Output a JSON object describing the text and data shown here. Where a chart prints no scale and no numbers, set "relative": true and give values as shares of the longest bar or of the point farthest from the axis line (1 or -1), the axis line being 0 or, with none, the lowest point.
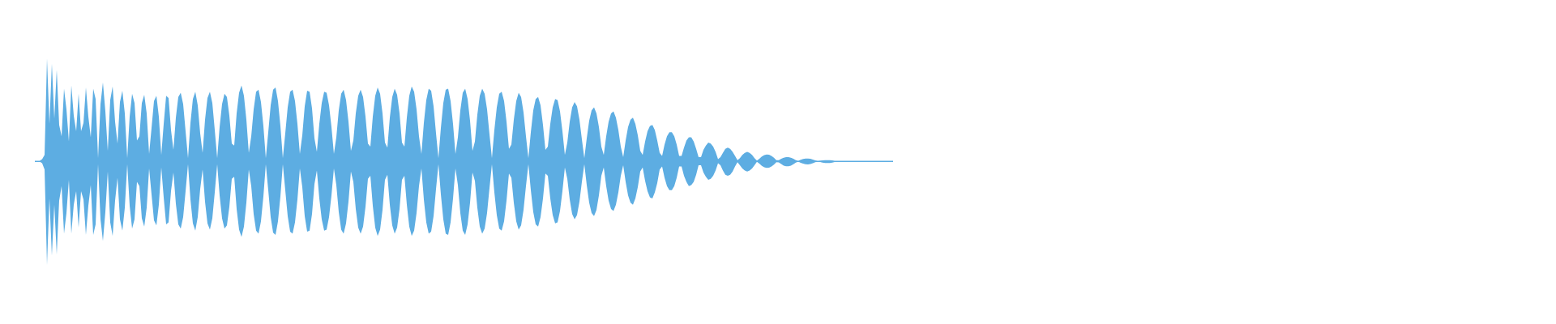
{
  "chart_data": {
    "type": "area",
    "relative": true,
    "tick_labels": false,
    "categories": [
      null,
      null,
      null,
      null,
      null,
      null,
      null,
      null,
      null,
      null,
      null,
      null,
      null,
      null,
      null,
      null,
      null,
      null,
      null,
      null,
      null,
      null,
      null,
      null,
      null,
      null,
      null,
      null,
      null,
      null,
      null,
      null,
      null,
      null,
      null,
      null,
      null,
      null,
      null,
      null,
      null,
      null,
      null,
      null,
      null,
      null,
      null,
      null,
      null,
      null,
      null,
      null,
      null,
      null,
      null,
      null,
      null,
      null,
      null,
      null,
      null,
      null,
      null,
      null,
      null,
      null,
      null,
      null,
      null,
      null,
      null,
      null,
      null,
      null,
      null,
      null,
      null,
      null,
      null,
      null,
      null,
      null,
      null,
      null,
      null,
      null,
      null,
      null,
      null,
      null,
      null,
      null,
      null,
      null,
      null,
      null,
      null,
      null,
      null,
      null,
      null,
      null,
      null,
      null,
      null,
      null,
      null,
      null,
      null,
      null,
      null,
      null,
      null,
      null,
      null,
      null,
      null,
      null,
      null,
      null,
      null,
      null,
      null,
      null,
      null,
      null,
      null,
      null,
      null,
      null,
      null,
      null,
      null,
      null,
      null,
      null,
      null,
      null,
      null,
      null,
      null,
      null,
      null,
      null,
      null,
      null,
      null,
      null,
      null,
      null,
      null,
      null,
      null,
      null,
      null,
      null,
      null,
      null,
      null,
      null,
      null,
      null,
      null,
      null,
      null,
      null,
      null,
      null,
      null,
      null,
      null,
      null,
      null,
      null,
      null,
      null,
      null,
      null,
      null,
      null,
      null,
      null,
      null,
      null,
      null,
      null,
      null,
      null,
      null,
      null,
      null,
      null,
      null,
      null,
      null,
      null,
      null,
      null,
      null,
      null,
      null,
      null,
      null,
      null,
      null,
      null,
      null,
      null,
      null,
      null,
      null,
      null,
      null,
      null,
      null,
      null,
      null,
      null,
      null,
      null,
      null,
      null,
      null,
      null,
      null,
      null,
      null,
      null,
      null,
      null,
      null,
      null,
      null,
      null,
      null,
      null,
      null,
      null,
      null,
      null,
      null,
      null,
      null,
      null,
      null,
      null,
      null,
      null,
      null,
      null,
      null,
      null,
      null,
      null,
      null,
      null,
      null,
      null,
      null,
      null,
      null,
      null,
      null,
      null,
      null,
      null,
      null,
      null,
      null,
      null,
      null,
      null,
      null,
      null,
      null,
      null,
      null,
      null,
      null,
      null,
      null,
      null,
      null,
      null,
      null,
      null,
      null,
      null,
      null,
      null,
      null,
      null,
      null,
      null,
      null,
      null,
      null,
      null,
      null,
      null,
      null,
      null,
      null,
      null,
      null,
      null,
      null,
      null,
      null,
      null,
      null,
      null,
      null,
      null,
      null,
      null,
      null,
      null,
      null,
      null,
      null,
      null,
      null,
      null,
      null,
      null,
      null,
      null,
      null,
      null,
      null,
      null,
      null,
      null,
      null,
      null,
      null,
      null,
      null,
      null,
      null,
      null,
      null,
      null,
      null,
      null,
      null,
      null,
      null,
      null,
      null,
      null,
      null,
      null
    ],
    "series": [
      {
        "color": "#5dade2",
        "values": [
          0.004,
          0.004,
          0.004,
          0.02,
          0.06,
          0.99,
          0.36,
          0.94,
          0.41,
          0.88,
          0.35,
          0.24,
          0.7,
          0.5,
          0.19,
          0.73,
          0.44,
          0.29,
          0.65,
          0.29,
          0.37,
          0.71,
          0.43,
          0.23,
          0.7,
          0.6,
          0.03,
          0.55,
          0.76,
          0.48,
          0.1,
          0.59,
          0.72,
          0.38,
          0.17,
          0.57,
          0.68,
          0.46,
          0.03,
          0.43,
          0.65,
          0.56,
          0.2,
          0.24,
          0.56,
          0.64,
          0.46,
          0.07,
          0.32,
          0.58,
          0.63,
          0.43,
          0.06,
          0.36,
          0.63,
          0.61,
          0.3,
          0.11,
          0.42,
          0.62,
          0.66,
          0.55,
          0.29,
          0.03,
          0.37,
          0.6,
          0.67,
          0.54,
          0.27,
          0.08,
          0.4,
          0.61,
          0.67,
          0.56,
          0.3,
          0.03,
          0.33,
          0.55,
          0.65,
          0.62,
          0.44,
          0.17,
          0.15,
          0.46,
          0.66,
          0.73,
          0.63,
          0.4,
          0.08,
          0.24,
          0.5,
          0.67,
          0.69,
          0.57,
          0.34,
          0.03,
          0.28,
          0.54,
          0.69,
          0.71,
          0.58,
          0.34,
          0.03,
          0.27,
          0.52,
          0.67,
          0.69,
          0.58,
          0.36,
          0.07,
          0.25,
          0.53,
          0.68,
          0.67,
          0.51,
          0.22,
          0.09,
          0.36,
          0.56,
          0.67,
          0.66,
          0.54,
          0.33,
          0.07,
          0.23,
          0.49,
          0.65,
          0.69,
          0.59,
          0.38,
          0.1,
          0.2,
          0.46,
          0.63,
          0.69,
          0.62,
          0.43,
          0.17,
          0.14,
          0.43,
          0.63,
          0.71,
          0.65,
          0.46,
          0.18,
          0.13,
          0.42,
          0.62,
          0.7,
          0.64,
          0.46,
          0.18,
          0.14,
          0.42,
          0.63,
          0.72,
          0.67,
          0.5,
          0.24,
          0.07,
          0.37,
          0.59,
          0.7,
          0.68,
          0.53,
          0.27,
          0.03,
          0.32,
          0.56,
          0.69,
          0.7,
          0.58,
          0.36,
          0.07,
          0.23,
          0.49,
          0.66,
          0.7,
          0.6,
          0.39,
          0.1,
          0.19,
          0.45,
          0.63,
          0.7,
          0.65,
          0.5,
          0.26,
          0.03,
          0.3,
          0.52,
          0.65,
          0.67,
          0.58,
          0.38,
          0.12,
          0.16,
          0.4,
          0.58,
          0.66,
          0.62,
          0.47,
          0.24,
          0.03,
          0.28,
          0.49,
          0.6,
          0.62,
          0.54,
          0.35,
          0.11,
          0.14,
          0.36,
          0.52,
          0.6,
          0.59,
          0.48,
          0.29,
          0.06,
          0.18,
          0.38,
          0.52,
          0.57,
          0.53,
          0.4,
          0.21,
          0.03,
          0.22,
          0.39,
          0.49,
          0.52,
          0.46,
          0.33,
          0.14,
          0.06,
          0.24,
          0.38,
          0.46,
          0.48,
          0.42,
          0.3,
          0.14,
          0.04,
          0.2,
          0.33,
          0.4,
          0.42,
          0.36,
          0.25,
          0.1,
          0.06,
          0.19,
          0.29,
          0.34,
          0.35,
          0.3,
          0.2,
          0.08,
          0.05,
          0.16,
          0.24,
          0.28,
          0.28,
          0.24,
          0.16,
          0.05,
          0.05,
          0.13,
          0.2,
          0.23,
          0.23,
          0.19,
          0.12,
          0.04,
          0.04,
          0.11,
          0.15,
          0.18,
          0.17,
          0.14,
          0.09,
          0.02,
          0.04,
          0.08,
          0.12,
          0.13,
          0.12,
          0.09,
          0.05,
          0.01,
          0.03,
          0.06,
          0.08,
          0.09,
          0.08,
          0.06,
          0.03,
          0.005,
          0.023,
          0.044,
          0.059,
          0.065,
          0.062,
          0.051,
          0.033,
          0.01,
          0.009,
          0.023,
          0.033,
          0.039,
          0.04,
          0.034,
          0.024,
          0.01,
          0.004,
          0.013,
          0.021,
          0.025,
          0.026,
          0.023,
          0.016,
          0.008,
          0.004,
          0.005,
          0.007,
          0.009,
          0.01,
          0.009,
          0.007,
          0.004,
          0.004,
          0.004,
          0.004,
          0.004,
          0.004,
          0.004,
          0.004,
          0.004,
          null,
          null,
          0.004,
          0.004,
          0.004,
          0.004,
          0.004,
          0.004,
          null,
          null,
          null,
          0.004,
          0.004,
          0.004,
          0.004,
          0.004
        ]
      },
      {
        "color": "#5dade2",
        "values": [
          -0.004,
          -0.004,
          -0.004,
          -0.02,
          -0.08,
          -1,
          -0.36,
          -0.91,
          -0.42,
          -0.9,
          -0.38,
          -0.24,
          -0.7,
          -0.5,
          -0.18,
          -0.7,
          -0.42,
          -0.29,
          -0.64,
          -0.29,
          -0.37,
          -0.71,
          -0.43,
          -0.23,
          -0.71,
          -0.61,
          -0.03,
          -0.56,
          -0.77,
          -0.49,
          -0.1,
          -0.59,
          -0.72,
          -0.38,
          -0.16,
          -0.56,
          -0.67,
          -0.45,
          -0.03,
          -0.43,
          -0.65,
          -0.56,
          -0.2,
          -0.24,
          -0.55,
          -0.63,
          -0.45,
          -0.07,
          -0.32,
          -0.57,
          -0.62,
          -0.42,
          -0.06,
          -0.35,
          -0.61,
          -0.59,
          -0.29,
          -0.11,
          -0.41,
          -0.61,
          -0.65,
          -0.54,
          -0.29,
          -0.03,
          -0.37,
          -0.6,
          -0.67,
          -0.54,
          -0.27,
          -0.08,
          -0.39,
          -0.6,
          -0.66,
          -0.55,
          -0.3,
          -0.03,
          -0.33,
          -0.55,
          -0.65,
          -0.62,
          -0.44,
          -0.17,
          -0.15,
          -0.46,
          -0.66,
          -0.73,
          -0.63,
          -0.4,
          -0.08,
          -0.24,
          -0.51,
          -0.67,
          -0.7,
          -0.58,
          -0.34,
          -0.03,
          -0.28,
          -0.54,
          -0.69,
          -0.71,
          -0.58,
          -0.34,
          -0.03,
          -0.28,
          -0.53,
          -0.68,
          -0.7,
          -0.59,
          -0.37,
          -0.07,
          -0.25,
          -0.53,
          -0.68,
          -0.67,
          -0.51,
          -0.22,
          -0.09,
          -0.36,
          -0.56,
          -0.67,
          -0.66,
          -0.54,
          -0.33,
          -0.07,
          -0.23,
          -0.49,
          -0.66,
          -0.7,
          -0.6,
          -0.39,
          -0.1,
          -0.2,
          -0.46,
          -0.64,
          -0.7,
          -0.63,
          -0.44,
          -0.17,
          -0.14,
          -0.43,
          -0.64,
          -0.72,
          -0.66,
          -0.47,
          -0.18,
          -0.13,
          -0.42,
          -0.62,
          -0.7,
          -0.64,
          -0.46,
          -0.18,
          -0.14,
          -0.42,
          -0.63,
          -0.72,
          -0.67,
          -0.5,
          -0.24,
          -0.07,
          -0.37,
          -0.59,
          -0.7,
          -0.68,
          -0.53,
          -0.27,
          -0.03,
          -0.32,
          -0.56,
          -0.7,
          -0.71,
          -0.59,
          -0.36,
          -0.07,
          -0.23,
          -0.5,
          -0.67,
          -0.71,
          -0.61,
          -0.4,
          -0.11,
          -0.19,
          -0.45,
          -0.63,
          -0.7,
          -0.65,
          -0.5,
          -0.26,
          -0.03,
          -0.3,
          -0.52,
          -0.65,
          -0.67,
          -0.58,
          -0.38,
          -0.12,
          -0.16,
          -0.4,
          -0.58,
          -0.66,
          -0.62,
          -0.47,
          -0.24,
          -0.03,
          -0.28,
          -0.49,
          -0.61,
          -0.63,
          -0.54,
          -0.36,
          -0.12,
          -0.14,
          -0.36,
          -0.52,
          -0.6,
          -0.59,
          -0.48,
          -0.29,
          -0.06,
          -0.17,
          -0.37,
          -0.51,
          -0.56,
          -0.52,
          -0.39,
          -0.2,
          -0.03,
          -0.23,
          -0.4,
          -0.5,
          -0.53,
          -0.47,
          -0.33,
          -0.14,
          -0.06,
          -0.24,
          -0.38,
          -0.46,
          -0.48,
          -0.42,
          -0.3,
          -0.14,
          -0.04,
          -0.2,
          -0.33,
          -0.4,
          -0.42,
          -0.36,
          -0.25,
          -0.1,
          -0.06,
          -0.19,
          -0.29,
          -0.35,
          -0.36,
          -0.3,
          -0.21,
          -0.08,
          -0.05,
          -0.16,
          -0.24,
          -0.28,
          -0.28,
          -0.24,
          -0.16,
          -0.05,
          -0.05,
          -0.14,
          -0.2,
          -0.24,
          -0.23,
          -0.2,
          -0.13,
          -0.04,
          -0.04,
          -0.11,
          -0.15,
          -0.18,
          -0.17,
          -0.14,
          -0.09,
          -0.02,
          -0.04,
          -0.09,
          -0.13,
          -0.14,
          -0.13,
          -0.1,
          -0.05,
          -0.01,
          -0.04,
          -0.07,
          -0.09,
          -0.1,
          -0.09,
          -0.07,
          -0.04,
          -0.005,
          -0.023,
          -0.044,
          -0.059,
          -0.065,
          -0.062,
          -0.051,
          -0.033,
          -0.01,
          -0.011,
          -0.028,
          -0.042,
          -0.049,
          -0.049,
          -0.043,
          -0.03,
          -0.013,
          -0.004,
          -0.015,
          -0.024,
          -0.03,
          -0.031,
          -0.027,
          -0.02,
          -0.009,
          -0.004,
          -0.008,
          -0.013,
          -0.017,
          -0.018,
          -0.017,
          -0.013,
          -0.007,
          -0.004,
          -0.004,
          -0.004,
          -0.004,
          -0.004,
          -0.004,
          -0.004,
          -0.004,
          null,
          null,
          -0.004,
          -0.004,
          -0.004,
          -0.004,
          -0.004,
          -0.004,
          null,
          null,
          null,
          -0.004,
          -0.004,
          -0.004,
          -0.004,
          -0.004
        ]
      }
    ]
  }
}
